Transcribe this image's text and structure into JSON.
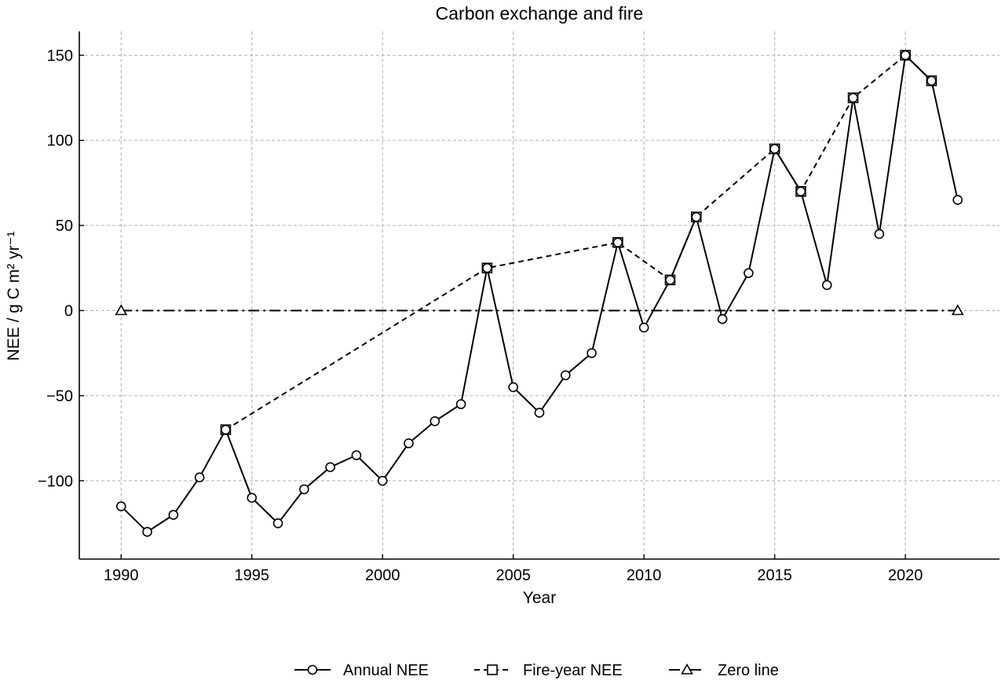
{
  "chart_data": {
    "type": "line",
    "title": "Carbon exchange and fire",
    "xlabel": "Year",
    "ylabel": "NEE / g C m² yr⁻¹",
    "xlim": [
      1988.4,
      2023.6
    ],
    "ylim": [
      -146,
      164
    ],
    "xticks": [
      1990,
      1995,
      2000,
      2005,
      2010,
      2015,
      2020
    ],
    "yticks": [
      -100,
      -50,
      0,
      50,
      100,
      150
    ],
    "ytick_labels": [
      "−100",
      "−50",
      "0",
      "50",
      "100",
      "150"
    ],
    "grid": true,
    "legend_position": "bottom",
    "series": [
      {
        "name": "Annual NEE",
        "marker": "circle",
        "line": "solid",
        "color": "#000000",
        "x": [
          1990,
          1991,
          1992,
          1993,
          1994,
          1995,
          1996,
          1997,
          1998,
          1999,
          2000,
          2001,
          2002,
          2003,
          2004,
          2005,
          2006,
          2007,
          2008,
          2009,
          2010,
          2011,
          2012,
          2013,
          2014,
          2015,
          2016,
          2017,
          2018,
          2019,
          2020,
          2021,
          2022
        ],
        "y": [
          -115,
          -130,
          -120,
          -98,
          -70,
          -110,
          -125,
          -105,
          -92,
          -85,
          -100,
          -78,
          -65,
          -55,
          25,
          -45,
          -60,
          -38,
          -25,
          40,
          -10,
          18,
          55,
          -5,
          22,
          95,
          70,
          15,
          125,
          45,
          150,
          135,
          65
        ]
      },
      {
        "name": "Fire-year NEE",
        "marker": "square",
        "line": "dashed",
        "color": "#000000",
        "x": [
          1994,
          2004,
          2009,
          2011,
          2012,
          2015,
          2016,
          2018,
          2020,
          2021
        ],
        "y": [
          -70,
          25,
          40,
          18,
          55,
          95,
          70,
          125,
          150,
          135
        ]
      },
      {
        "name": "Zero line",
        "marker": "triangle",
        "line": "dashdot",
        "color": "#000000",
        "x": [
          1990,
          2022
        ],
        "y": [
          0,
          0
        ]
      }
    ]
  }
}
